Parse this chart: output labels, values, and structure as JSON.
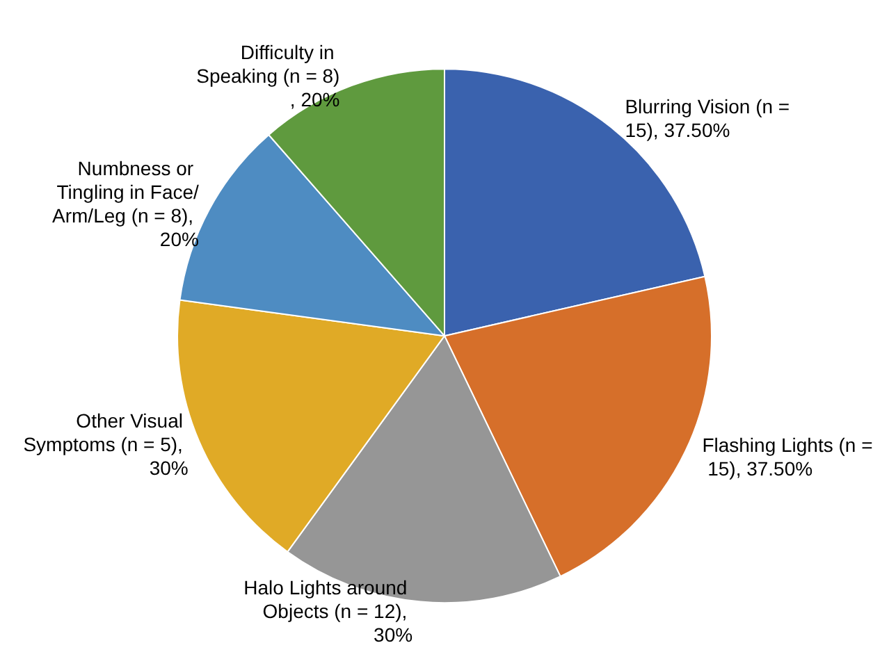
{
  "chart_data": {
    "type": "pie",
    "categories": [
      "Blurring Vision",
      "Flashing Lights",
      "Halo Lights around Objects",
      "Other Visual Symptoms",
      "Numbness or Tingling in Face/Arm/Leg",
      "Difficulty in Speaking"
    ],
    "values": [
      37.5,
      37.5,
      30,
      30,
      20,
      20
    ],
    "value_labels": [
      "(n = 15), 37.50%",
      "(n = 15), 37.50%",
      "(n = 12), 30%",
      "(n = 5), 30%",
      "(n = 8), 20%",
      "(n = 8), 20%"
    ],
    "colors": [
      "#3a62ae",
      "#d66f2a",
      "#969696",
      "#e0aa26",
      "#4e8cc2",
      "#5f9a3e"
    ],
    "legend": false
  }
}
